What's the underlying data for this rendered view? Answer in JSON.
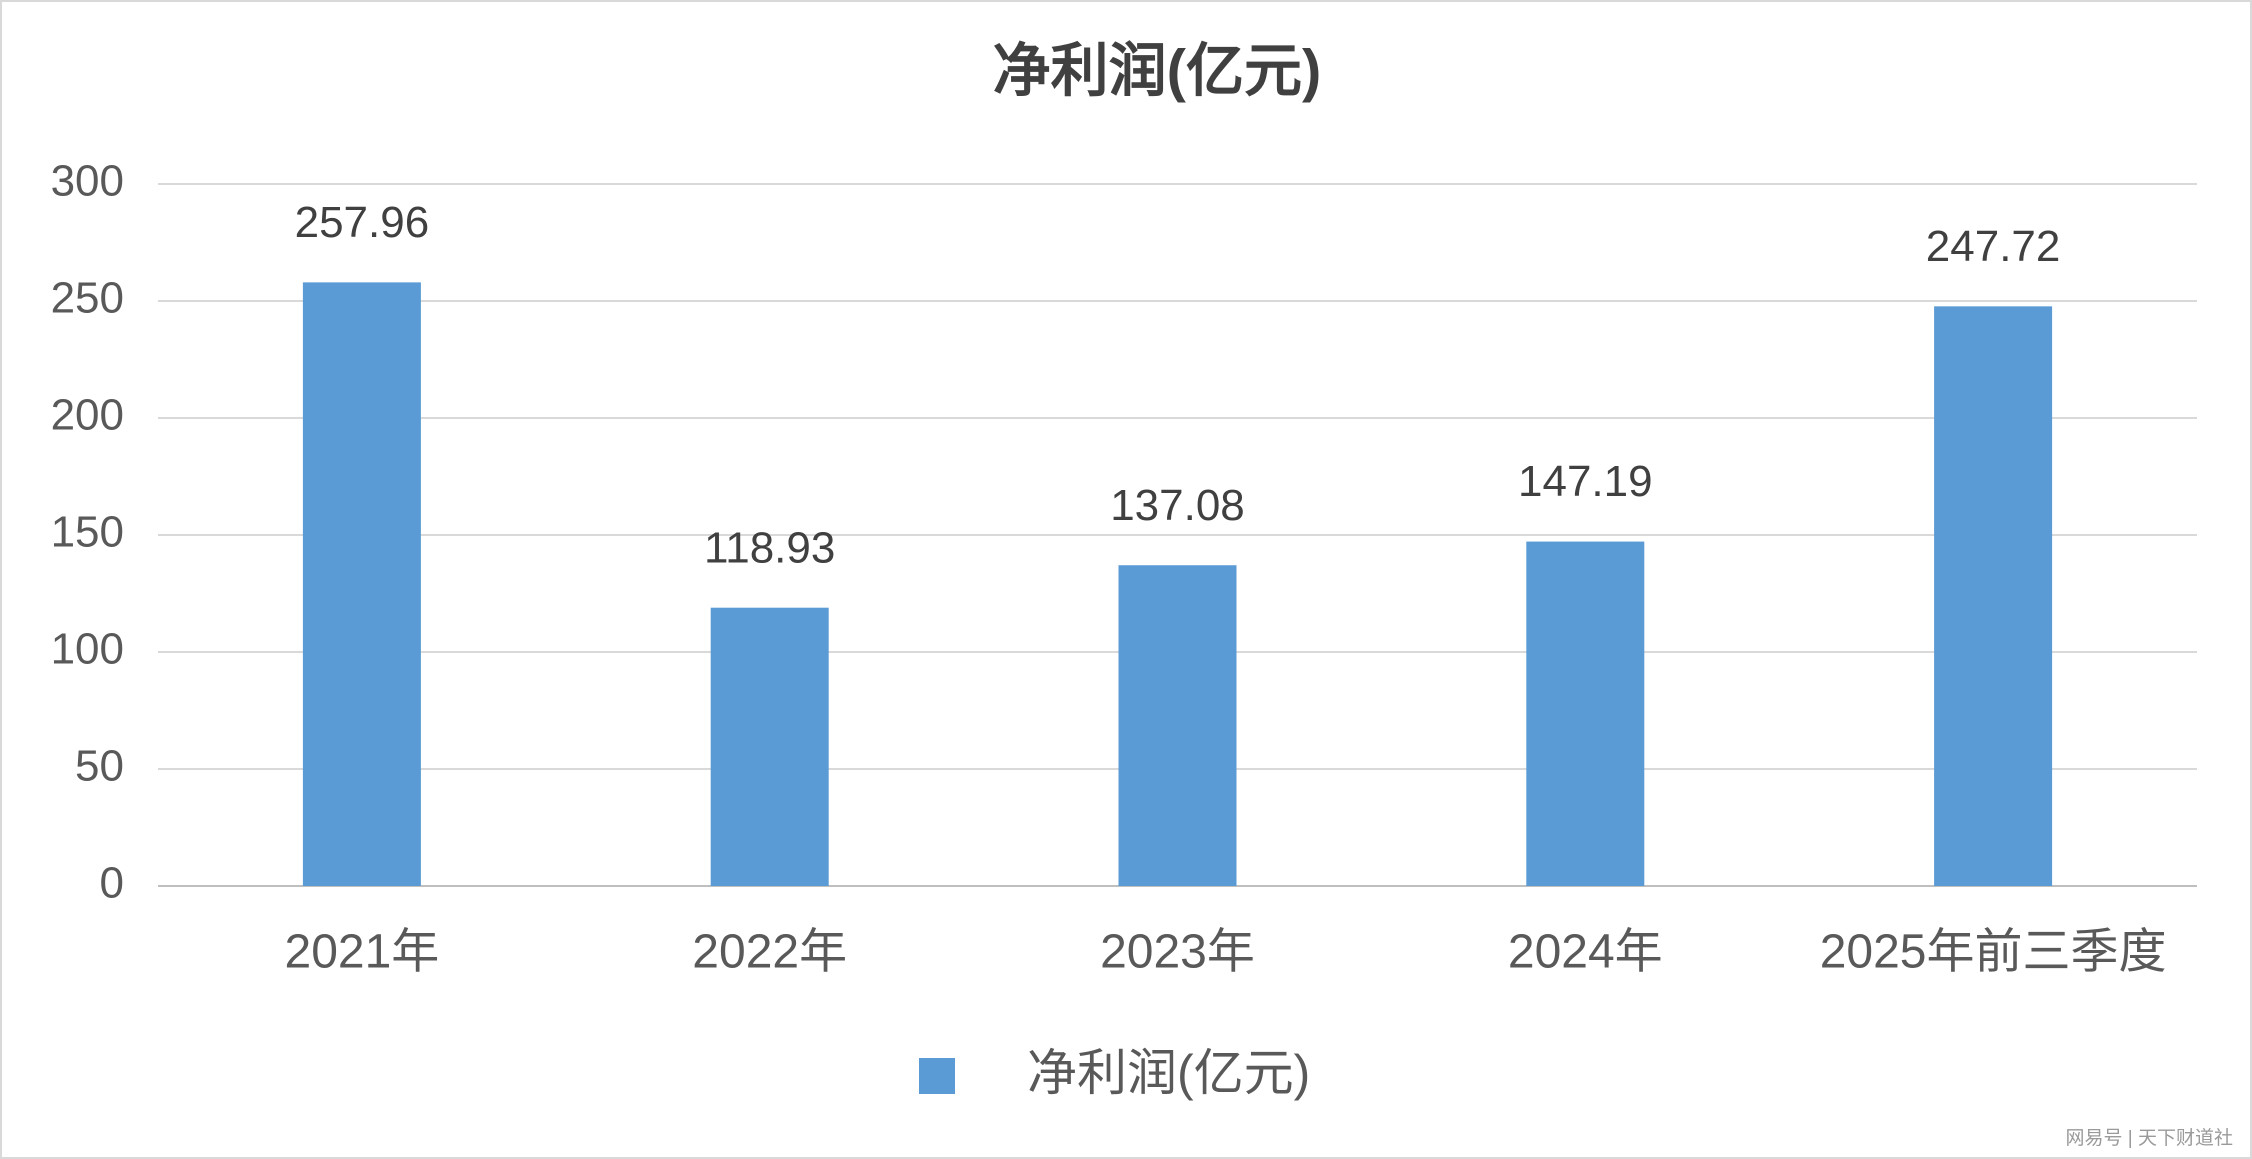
{
  "chart_data": {
    "type": "bar",
    "title": "净利润(亿元)",
    "categories": [
      "2021年",
      "2022年",
      "2023年",
      "2024年",
      "2025年前三季度"
    ],
    "series": [
      {
        "name": "净利润(亿元)",
        "color": "#5b9bd5",
        "values": [
          257.96,
          118.93,
          137.08,
          147.19,
          247.72
        ]
      }
    ],
    "ylim": [
      0,
      300
    ],
    "yticks": [
      0,
      50,
      100,
      150,
      200,
      250,
      300
    ],
    "grid": true,
    "legend": "bottom",
    "watermark": "网易号 | 天下财道社"
  }
}
